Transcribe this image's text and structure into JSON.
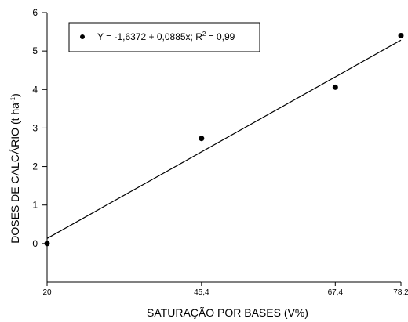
{
  "chart_data": {
    "type": "scatter",
    "title": "",
    "xlabel": "SATURAÇÃO POR BASES (V%)",
    "ylabel_main": "DOSES DE CALCÁRIO (t ha",
    "ylabel_sup": "-1",
    "ylabel_end": ")",
    "xlim": [
      20,
      78.2
    ],
    "ylim": [
      -1,
      6
    ],
    "x_ticks": [
      20,
      45.4,
      67.4,
      78.2
    ],
    "x_tick_labels": [
      "20",
      "45,4",
      "67,4",
      "78,2"
    ],
    "y_ticks": [
      0,
      1,
      2,
      3,
      4,
      5,
      6
    ],
    "y_tick_labels": [
      "0",
      "1",
      "2",
      "3",
      "4",
      "5",
      "6"
    ],
    "grid": false,
    "legend_position": "top-left",
    "series": [
      {
        "x": [
          20,
          45.4,
          67.4,
          78.2
        ],
        "y": [
          0,
          2.73,
          4.06,
          5.4
        ]
      }
    ],
    "fit_line": {
      "intercept": -1.6372,
      "slope": 0.0885
    },
    "legend": {
      "equation_main": "Y = -1,6372 + 0,0885x; R",
      "equation_sup": "2",
      "equation_end": " = 0,99"
    },
    "colors": {
      "points": "#000000",
      "line": "#000000",
      "axes": "#000000"
    }
  }
}
